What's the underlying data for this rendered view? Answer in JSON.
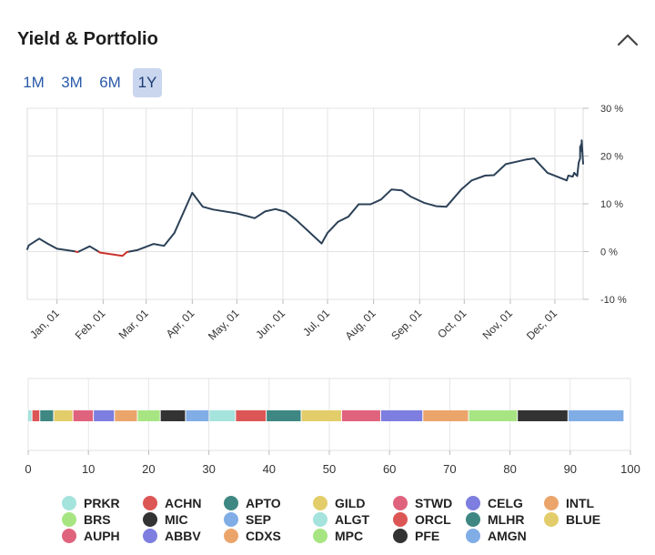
{
  "header": {
    "title": "Yield & Portfolio"
  },
  "range_tabs": [
    {
      "label": "1M",
      "active": false
    },
    {
      "label": "3M",
      "active": false
    },
    {
      "label": "6M",
      "active": false
    },
    {
      "label": "1Y",
      "active": true
    }
  ],
  "chart_data": [
    {
      "type": "line",
      "title": "",
      "xlabel": "",
      "ylabel": "",
      "x_ticks": [
        "Jan, 01",
        "Feb, 01",
        "Mar, 01",
        "Apr, 01",
        "May, 01",
        "Jun, 01",
        "Jul, 01",
        "Aug, 01",
        "Sep, 01",
        "Oct, 01",
        "Nov, 01",
        "Dec, 01"
      ],
      "y_ticks": [
        "30 %",
        "20 %",
        "10 %",
        "0 %",
        "-10 %"
      ],
      "y_tick_values": [
        30,
        20,
        10,
        0,
        -10
      ],
      "ylim": [
        -10,
        30
      ],
      "xlim": [
        "2019-12-12",
        "2020-12-20"
      ],
      "grid": true,
      "series": [
        {
          "color": "#2c4157",
          "negative_color": "#c8312c",
          "points": [
            [
              "2019-12-12",
              0.5
            ],
            [
              "2019-12-13",
              1.3
            ],
            [
              "2019-12-20",
              2.7
            ],
            [
              "2019-12-26",
              1.6
            ],
            [
              "2020-01-01",
              0.6
            ],
            [
              "2020-01-12",
              0.1
            ],
            [
              "2020-01-15",
              -0.1
            ],
            [
              "2020-01-23",
              1.1
            ],
            [
              "2020-01-30",
              -0.2
            ],
            [
              "2020-02-14",
              -0.9
            ],
            [
              "2020-02-17",
              -0.1
            ],
            [
              "2020-02-24",
              0.3
            ],
            [
              "2020-03-06",
              1.6
            ],
            [
              "2020-03-13",
              1.2
            ],
            [
              "2020-03-20",
              3.9
            ],
            [
              "2020-04-01",
              12.3
            ],
            [
              "2020-04-08",
              9.4
            ],
            [
              "2020-04-15",
              8.8
            ],
            [
              "2020-05-01",
              8.0
            ],
            [
              "2020-05-13",
              7.0
            ],
            [
              "2020-05-20",
              8.4
            ],
            [
              "2020-05-27",
              8.9
            ],
            [
              "2020-06-03",
              8.3
            ],
            [
              "2020-06-10",
              6.6
            ],
            [
              "2020-06-27",
              1.7
            ],
            [
              "2020-07-01",
              3.9
            ],
            [
              "2020-07-08",
              6.2
            ],
            [
              "2020-07-15",
              7.3
            ],
            [
              "2020-07-22",
              9.9
            ],
            [
              "2020-07-30",
              9.9
            ],
            [
              "2020-08-06",
              10.9
            ],
            [
              "2020-08-13",
              13.0
            ],
            [
              "2020-08-20",
              12.8
            ],
            [
              "2020-08-26",
              11.5
            ],
            [
              "2020-09-04",
              10.2
            ],
            [
              "2020-09-12",
              9.5
            ],
            [
              "2020-09-19",
              9.4
            ],
            [
              "2020-09-29",
              13.0
            ],
            [
              "2020-10-06",
              14.9
            ],
            [
              "2020-10-15",
              15.9
            ],
            [
              "2020-10-21",
              16.0
            ],
            [
              "2020-10-29",
              18.3
            ],
            [
              "2020-11-05",
              18.8
            ],
            [
              "2020-11-12",
              19.3
            ],
            [
              "2020-11-17",
              19.5
            ],
            [
              "2020-11-26",
              16.5
            ],
            [
              "2020-12-09",
              14.9
            ],
            [
              "2020-12-10",
              15.9
            ],
            [
              "2020-12-13",
              15.7
            ],
            [
              "2020-12-14",
              16.5
            ],
            [
              "2020-12-16",
              15.8
            ],
            [
              "2020-12-17",
              18.6
            ],
            [
              "2020-12-18",
              19.5
            ],
            [
              "2020-12-18",
              21.9
            ],
            [
              "2020-12-19",
              22.6
            ],
            [
              "2020-12-19",
              21.0
            ],
            [
              "2020-12-19",
              23.3
            ],
            [
              "2020-12-20",
              18.4
            ]
          ]
        }
      ]
    },
    {
      "type": "bar",
      "orientation": "horizontal",
      "stacked": true,
      "title": "",
      "xlabel": "",
      "xlim": [
        0,
        100
      ],
      "x_ticks": [
        0,
        10,
        20,
        30,
        40,
        50,
        60,
        70,
        80,
        90,
        100
      ],
      "grid": true,
      "series": [
        {
          "name": "PRKR",
          "value": 0.7,
          "color": "#a5e3dd"
        },
        {
          "name": "ACHN",
          "value": 1.3,
          "color": "#dd5656"
        },
        {
          "name": "APTO",
          "value": 2.3,
          "color": "#3e8782"
        },
        {
          "name": "GILD",
          "value": 3.2,
          "color": "#e3cd6a"
        },
        {
          "name": "STWD",
          "value": 3.4,
          "color": "#e0637e"
        },
        {
          "name": "CELG",
          "value": 3.5,
          "color": "#7d7ee0"
        },
        {
          "name": "INTL",
          "value": 3.8,
          "color": "#eba56b"
        },
        {
          "name": "BRS",
          "value": 3.8,
          "color": "#a7e582"
        },
        {
          "name": "MIC",
          "value": 4.2,
          "color": "#333333"
        },
        {
          "name": "SEP",
          "value": 3.9,
          "color": "#80ade6"
        },
        {
          "name": "ALGT",
          "value": 4.4,
          "color": "#a5e3dd"
        },
        {
          "name": "ORCL",
          "value": 5.1,
          "color": "#dd5656"
        },
        {
          "name": "MLHR",
          "value": 5.8,
          "color": "#3e8782"
        },
        {
          "name": "BLUE",
          "value": 6.7,
          "color": "#e3cd6a"
        },
        {
          "name": "AUPH",
          "value": 6.5,
          "color": "#e0637e"
        },
        {
          "name": "ABBV",
          "value": 7.0,
          "color": "#7d7ee0"
        },
        {
          "name": "CDXS",
          "value": 7.6,
          "color": "#eba56b"
        },
        {
          "name": "MPC",
          "value": 8.1,
          "color": "#a7e582"
        },
        {
          "name": "PFE",
          "value": 8.4,
          "color": "#333333"
        },
        {
          "name": "AMGN",
          "value": 9.3,
          "color": "#80ade6"
        }
      ]
    }
  ]
}
